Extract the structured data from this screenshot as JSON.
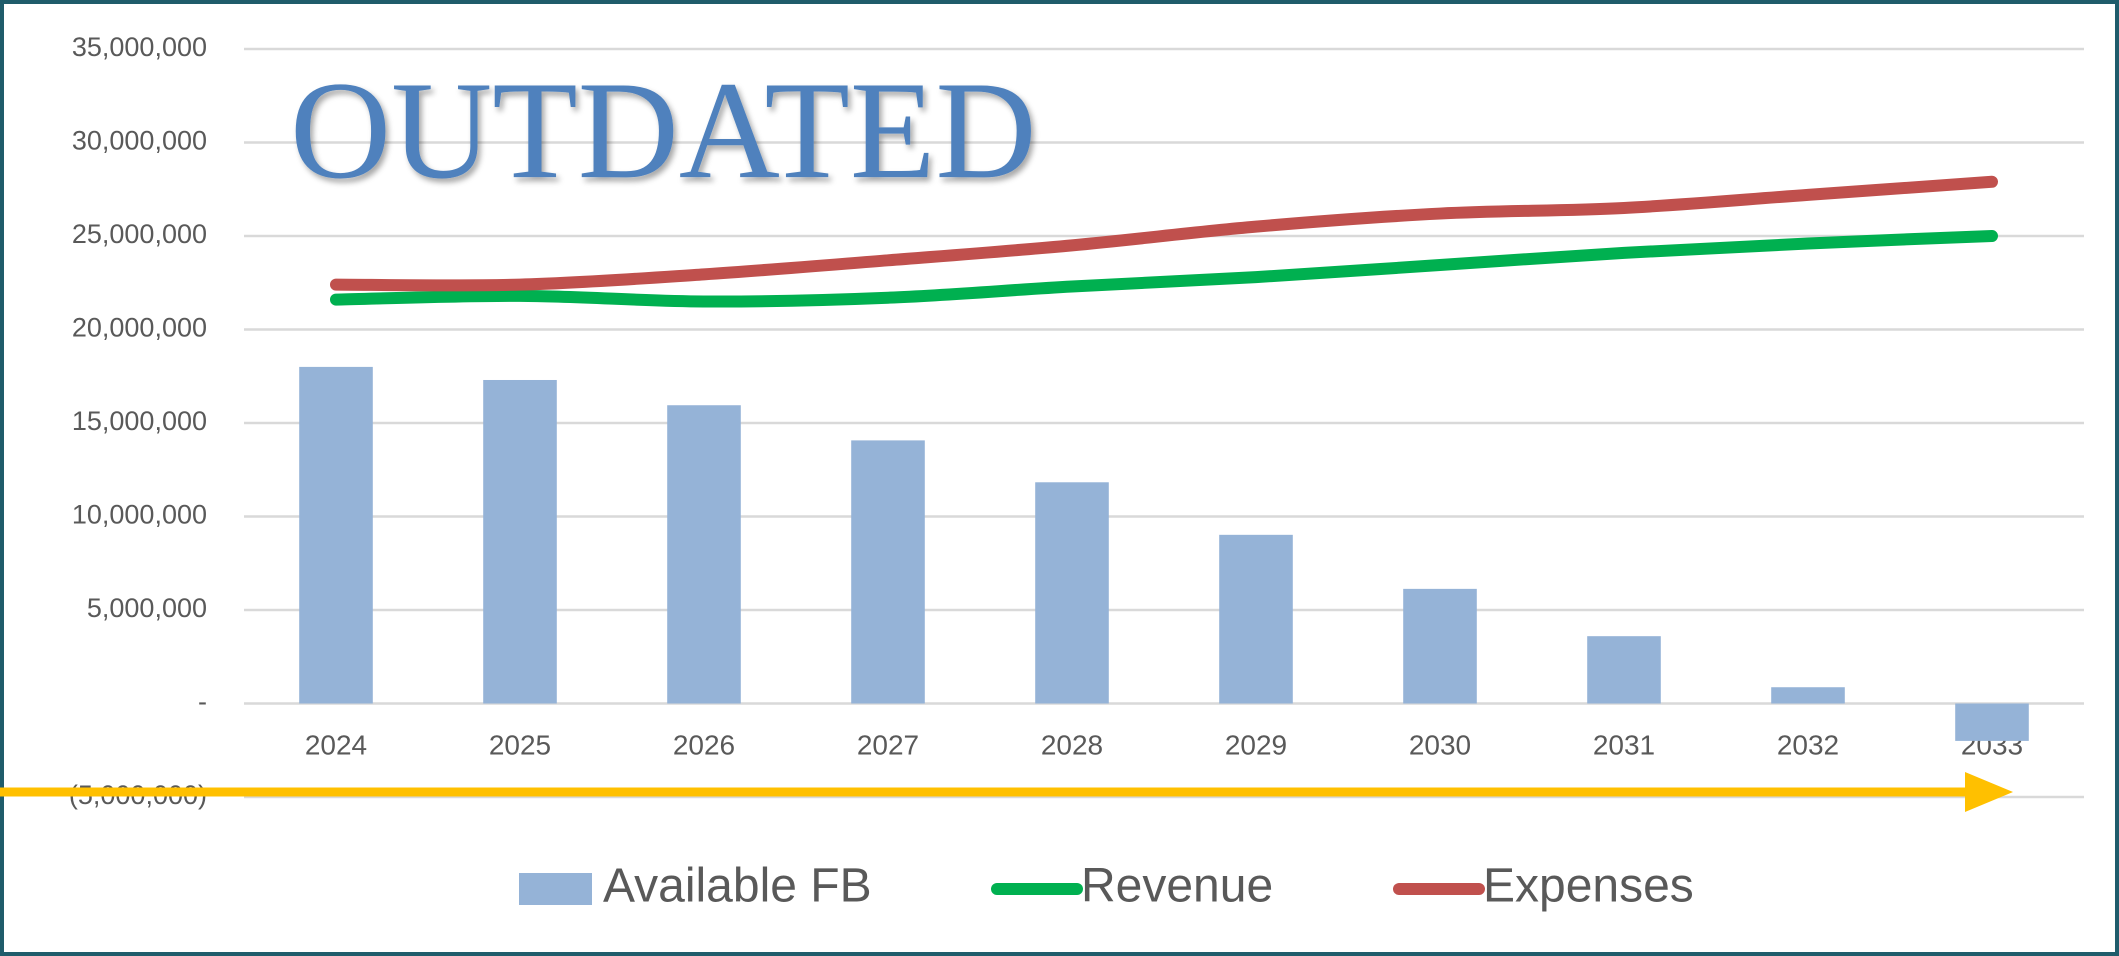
{
  "chart_data": {
    "type": "bar",
    "annotation": "OUTDATED",
    "categories": [
      "2024",
      "2025",
      "2026",
      "2027",
      "2028",
      "2029",
      "2030",
      "2031",
      "2032",
      "2033"
    ],
    "series": [
      {
        "name": "Available FB",
        "type": "bar",
        "color": "#95b3d7",
        "values": [
          18000000,
          17300000,
          15950000,
          14070000,
          11830000,
          9020000,
          6130000,
          3600000,
          870000,
          -2000000
        ]
      },
      {
        "name": "Revenue",
        "type": "line",
        "color": "#00b050",
        "values": [
          21600000,
          21800000,
          21500000,
          21700000,
          22300000,
          22800000,
          23450000,
          24100000,
          24600000,
          25000000
        ]
      },
      {
        "name": "Expenses",
        "type": "line",
        "color": "#c0504d",
        "values": [
          22400000,
          22400000,
          22950000,
          23700000,
          24500000,
          25500000,
          26200000,
          26500000,
          27200000,
          27900000
        ]
      }
    ],
    "ylim": [
      -5000000,
      35000000
    ],
    "yticks": [
      {
        "value": -5000000,
        "label": "(5,000,000)"
      },
      {
        "value": 0,
        "label": "-"
      },
      {
        "value": 5000000,
        "label": "5,000,000"
      },
      {
        "value": 10000000,
        "label": "10,000,000"
      },
      {
        "value": 15000000,
        "label": "15,000,000"
      },
      {
        "value": 20000000,
        "label": "20,000,000"
      },
      {
        "value": 25000000,
        "label": "25,000,000"
      },
      {
        "value": 30000000,
        "label": "30,000,000"
      },
      {
        "value": 35000000,
        "label": "35,000,000"
      }
    ],
    "grid": true,
    "legend": "bottom"
  }
}
